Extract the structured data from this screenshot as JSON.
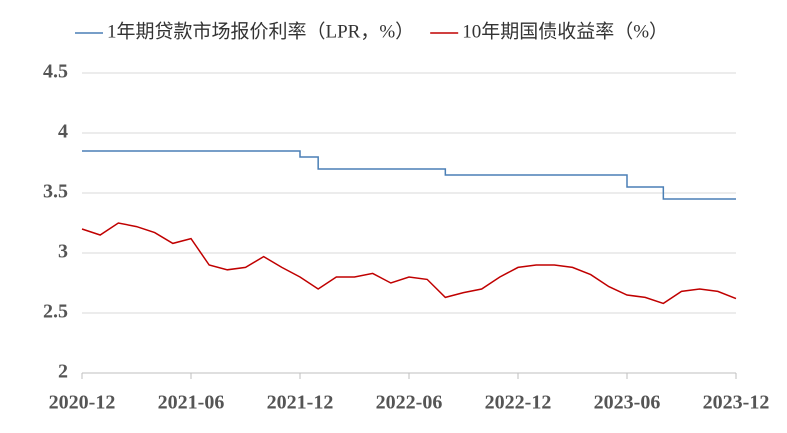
{
  "chart_data": {
    "type": "line",
    "x": [
      "2020-12",
      "2021-01",
      "2021-02",
      "2021-03",
      "2021-04",
      "2021-05",
      "2021-06",
      "2021-07",
      "2021-08",
      "2021-09",
      "2021-10",
      "2021-11",
      "2021-12",
      "2022-01",
      "2022-02",
      "2022-03",
      "2022-04",
      "2022-05",
      "2022-06",
      "2022-07",
      "2022-08",
      "2022-09",
      "2022-10",
      "2022-11",
      "2022-12",
      "2023-01",
      "2023-02",
      "2023-03",
      "2023-04",
      "2023-05",
      "2023-06",
      "2023-07",
      "2023-08",
      "2023-09",
      "2023-10",
      "2023-11",
      "2023-12"
    ],
    "series": [
      {
        "name": "1年期贷款市场报价利率（LPR，%）",
        "color": "#4a7fb5",
        "step": true,
        "values": [
          3.85,
          3.85,
          3.85,
          3.85,
          3.85,
          3.85,
          3.85,
          3.85,
          3.85,
          3.85,
          3.85,
          3.85,
          3.8,
          3.7,
          3.7,
          3.7,
          3.7,
          3.7,
          3.7,
          3.7,
          3.65,
          3.65,
          3.65,
          3.65,
          3.65,
          3.65,
          3.65,
          3.65,
          3.65,
          3.65,
          3.55,
          3.55,
          3.45,
          3.45,
          3.45,
          3.45,
          3.45
        ]
      },
      {
        "name": "10年期国债收益率（%）",
        "color": "#c00000",
        "values": [
          3.2,
          3.15,
          3.25,
          3.22,
          3.17,
          3.08,
          3.12,
          2.9,
          2.86,
          2.88,
          2.97,
          2.88,
          2.8,
          2.7,
          2.8,
          2.8,
          2.83,
          2.75,
          2.8,
          2.78,
          2.63,
          2.67,
          2.7,
          2.8,
          2.88,
          2.9,
          2.9,
          2.88,
          2.82,
          2.72,
          2.65,
          2.63,
          2.58,
          2.68,
          2.7,
          2.68,
          2.62
        ]
      }
    ],
    "xlim": [
      "2020-12",
      "2023-12"
    ],
    "xticks": [
      "2020-12",
      "2021-06",
      "2021-12",
      "2022-06",
      "2022-12",
      "2023-06",
      "2023-12"
    ],
    "ylim": [
      2,
      4.5
    ],
    "yticks": [
      2,
      2.5,
      3,
      3.5,
      4,
      4.5
    ],
    "grid": true
  }
}
